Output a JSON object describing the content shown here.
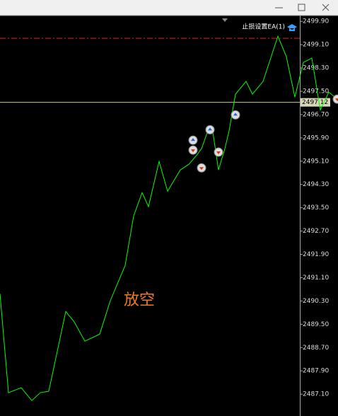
{
  "chart_data": {
    "type": "line",
    "x": [
      0,
      4,
      10,
      15,
      19,
      23,
      31,
      35,
      40,
      47,
      52,
      59,
      63,
      67,
      70,
      75,
      79,
      85,
      89,
      93,
      95,
      98,
      100,
      103,
      106,
      108,
      111,
      116,
      119,
      124,
      131,
      135,
      139,
      143,
      147,
      151,
      155,
      159
    ],
    "series": [
      {
        "color": "#00ff00",
        "values": [
          2490.55,
          2487.15,
          2487.32,
          2486.88,
          2487.15,
          2487.2,
          2489.94,
          2489.58,
          2488.92,
          2489.16,
          2490.31,
          2491.52,
          2493.22,
          2494.02,
          2493.54,
          2495.09,
          2494.07,
          2494.8,
          2494.99,
          2495.33,
          2495.53,
          2496.14,
          2496.26,
          2494.8,
          2495.53,
          2496.14,
          2497.4,
          2497.84,
          2497.4,
          2497.84,
          2499.39,
          2498.69,
          2497.3,
          2498.49,
          2498.64,
          2496.86,
          2497.47,
          2497.23
        ]
      }
    ],
    "trades": {
      "x": [
        91,
        91,
        99,
        103,
        95,
        111,
        159
      ],
      "values": [
        2495.82,
        2495.48,
        2496.18,
        2495.41,
        2494.87,
        2496.69,
        2497.23
      ],
      "colors": [
        "#2266dd",
        "#dd3311",
        "#2266dd",
        "#dd3311",
        "#dd3311",
        "#2266dd",
        "#dd3311"
      ]
    },
    "xlim": [
      0,
      212
    ],
    "ylim": [
      2486.35,
      2500.1
    ],
    "yticks": [
      {
        "value": 2499.9,
        "label": "2499.90"
      },
      {
        "value": 2499.1,
        "label": "2499.10"
      },
      {
        "value": 2498.3,
        "label": "2498.30"
      },
      {
        "value": 2497.5,
        "label": "2497.50"
      },
      {
        "value": 2496.7,
        "label": "2496.70"
      },
      {
        "value": 2495.9,
        "label": "2495.90"
      },
      {
        "value": 2495.1,
        "label": "2495.10"
      },
      {
        "value": 2494.3,
        "label": "2494.30"
      },
      {
        "value": 2493.5,
        "label": "2493.50"
      },
      {
        "value": 2492.7,
        "label": "2492.70"
      },
      {
        "value": 2491.9,
        "label": "2491.90"
      },
      {
        "value": 2491.1,
        "label": "2491.10"
      },
      {
        "value": 2490.3,
        "label": "2490.30"
      },
      {
        "value": 2489.5,
        "label": "2489.50"
      },
      {
        "value": 2488.7,
        "label": "2488.70"
      },
      {
        "value": 2487.9,
        "label": "2487.90"
      },
      {
        "value": 2487.1,
        "label": "2487.10"
      }
    ],
    "price_line": 2497.12,
    "stop_line": 2499.32,
    "expert_label": "止损设置EA(1)",
    "annotation": "放空"
  }
}
